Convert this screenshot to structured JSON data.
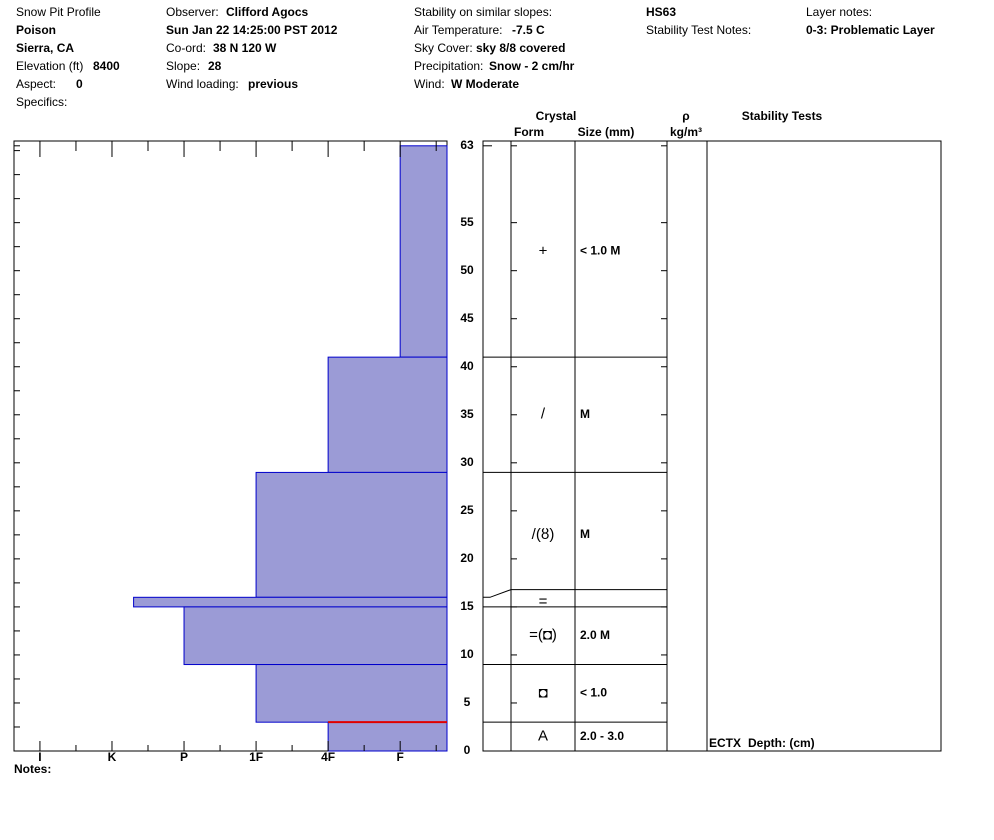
{
  "header": {
    "title": "Snow Pit Profile",
    "location": "Poison",
    "region": "Sierra, CA",
    "elevation": {
      "label": "Elevation (ft)",
      "value": 8400
    },
    "aspect": {
      "label": "Aspect:",
      "value": 0
    },
    "specifics": {
      "label": "Specifics:"
    },
    "observer": {
      "label": "Observer:",
      "value": "Clifford Agocs"
    },
    "date": "Sun Jan 22 14:25:00 PST 2012",
    "coord": {
      "label": "Co-ord:",
      "value": "38 N 120 W"
    },
    "slope": {
      "label": "Slope:",
      "value": 28
    },
    "wind_loading": {
      "label": "Wind loading:",
      "value": "previous"
    },
    "stability_similar": {
      "label": "Stability on similar slopes:"
    },
    "air_temp": {
      "label": "Air Temperature:",
      "value": "-7.5 C"
    },
    "sky": {
      "label": "Sky Cover:",
      "value": "sky 8/8 covered"
    },
    "precip": {
      "label": "Precipitation:",
      "value": "Snow - 2 cm/hr"
    },
    "wind": {
      "label": "Wind:",
      "value": "W Moderate"
    },
    "hs": "HS63",
    "stability_notes": {
      "label": "Stability Test Notes:"
    },
    "layer_notes": {
      "label": "Layer notes:",
      "value": "0-3: Problematic Layer"
    },
    "notes": "Notes:"
  },
  "chart_data": {
    "type": "snow-profile",
    "color": "#9b9bd6",
    "edge_color": "#0000cc",
    "problem_color": "#e00000",
    "xlim": [
      0.64,
      6.65
    ],
    "xticks": [
      {
        "value": 1,
        "label": "I"
      },
      {
        "value": 2,
        "label": "K"
      },
      {
        "value": 3,
        "label": "P"
      },
      {
        "value": 4,
        "label": "1F"
      },
      {
        "value": 5,
        "label": "4F"
      },
      {
        "value": 6,
        "label": "F"
      }
    ],
    "minor_xticks": [
      1.5,
      2.5,
      3.5,
      4.5,
      5.5,
      6.5
    ],
    "ylim": [
      0,
      63.5
    ],
    "yticks": [
      0,
      5,
      10,
      15,
      20,
      25,
      30,
      35,
      40,
      45,
      50,
      55,
      63
    ],
    "minor_yticks": [
      2.5,
      7.5,
      12.5,
      17.5,
      22.5,
      27.5,
      32.5,
      37.5,
      42.5,
      47.5,
      52.5,
      57.5,
      60,
      62.5
    ],
    "problem_depth": 3,
    "columns": {
      "crystal": "Crystal",
      "form": "Form",
      "size": "Size (mm)",
      "rho": "ρ",
      "density_unit": "kg/m³",
      "stability": "Stability Tests"
    },
    "stability_tests": [
      {
        "text": "ECTX"
      }
    ],
    "depth_label": "Depth: (cm)",
    "layers": [
      {
        "top": 63,
        "bottom": 41,
        "hardness": 6,
        "form": "+",
        "size": "< 1.0 M"
      },
      {
        "top": 41,
        "bottom": 29,
        "hardness": 5,
        "form": "/",
        "size": "M"
      },
      {
        "top": 29,
        "bottom": 16,
        "hardness": 4,
        "form": "/(ȣ)",
        "size": "M"
      },
      {
        "top": 16,
        "bottom": 15,
        "hardness": 2.3,
        "form": "="
      },
      {
        "top": 15,
        "bottom": 9,
        "hardness": 3,
        "form": "=(◘)",
        "size": "2.0 M"
      },
      {
        "top": 9,
        "bottom": 3,
        "hardness": 4,
        "form": "◘",
        "size": "< 1.0"
      },
      {
        "top": 3,
        "bottom": 0,
        "hardness": 5,
        "form": "A",
        "size": "2.0 - 3.0"
      }
    ]
  }
}
